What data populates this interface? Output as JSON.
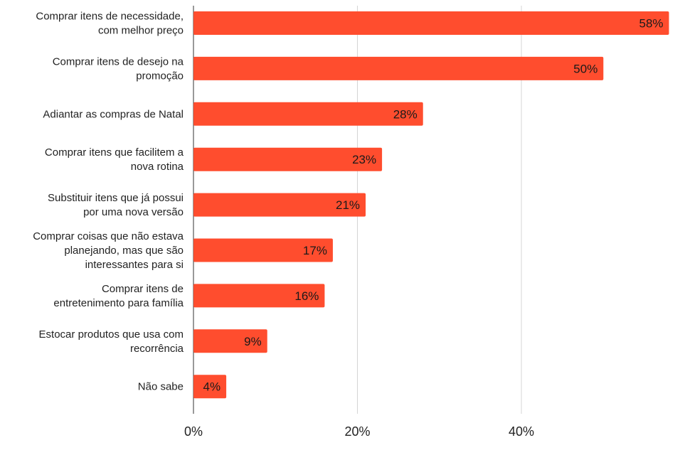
{
  "chart_data": {
    "type": "bar",
    "orientation": "horizontal",
    "categories": [
      "Comprar itens de necessidade,\ncom melhor preço",
      "Comprar itens de desejo na\npromoção",
      "Adiantar as compras de Natal",
      "Comprar itens que facilitem a\nnova rotina",
      "Substituir itens que já possui\npor uma nova versão",
      "Comprar coisas que não estava\nplanejando, mas que são\ninteressantes para si",
      "Comprar itens de\nentretenimento para família",
      "Estocar produtos que usa com\nrecorrência",
      "Não sabe"
    ],
    "values": [
      58,
      50,
      28,
      23,
      21,
      17,
      16,
      9,
      4
    ],
    "value_labels": [
      "58%",
      "50%",
      "28%",
      "23%",
      "21%",
      "17%",
      "16%",
      "9%",
      "4%"
    ],
    "x_ticks": [
      "0%",
      "20%",
      "40%"
    ],
    "xlim": [
      0,
      57
    ],
    "grid": true,
    "bar_color": "#FF4D2E",
    "title": "",
    "xlabel": "",
    "ylabel": ""
  }
}
